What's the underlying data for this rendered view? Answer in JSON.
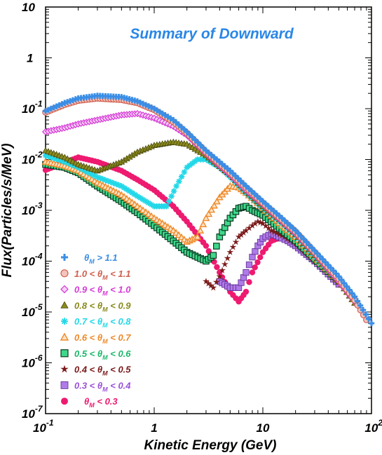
{
  "chart_data": {
    "type": "scatter",
    "title": "Summary of Downward",
    "xlabel": "Kinetic Energy (GeV)",
    "ylabel": "Flux(Particles/s/MeV)",
    "x_scale": "log",
    "y_scale": "log",
    "xlim": [
      0.1,
      100
    ],
    "ylim": [
      1e-07,
      10
    ],
    "grid": false,
    "legend_position": "bottom-left",
    "x_ticks": [
      {
        "value": 0.1,
        "base": "10",
        "exp": "-1"
      },
      {
        "value": 1,
        "base": "1",
        "exp": ""
      },
      {
        "value": 10,
        "base": "10",
        "exp": ""
      },
      {
        "value": 100,
        "base": "10",
        "exp": "2"
      }
    ],
    "y_ticks": [
      {
        "value": 10,
        "base": "10",
        "exp": ""
      },
      {
        "value": 1,
        "base": "1",
        "exp": ""
      },
      {
        "value": 0.1,
        "base": "10",
        "exp": "-1"
      },
      {
        "value": 0.01,
        "base": "10",
        "exp": "-2"
      },
      {
        "value": 0.001,
        "base": "10",
        "exp": "-3"
      },
      {
        "value": 0.0001,
        "base": "10",
        "exp": "-4"
      },
      {
        "value": 1e-05,
        "base": "10",
        "exp": "-5"
      },
      {
        "value": 1e-06,
        "base": "10",
        "exp": "-6"
      },
      {
        "value": 1e-07,
        "base": "10",
        "exp": "-7"
      }
    ],
    "series": [
      {
        "legend": {
          "pre": "",
          "sub": "M",
          "post": " > 1.1"
        },
        "marker": "plus",
        "color": "#3a8ee6",
        "points": [
          [
            0.1,
            0.09
          ],
          [
            0.15,
            0.13
          ],
          [
            0.2,
            0.16
          ],
          [
            0.3,
            0.18
          ],
          [
            0.5,
            0.17
          ],
          [
            0.7,
            0.14
          ],
          [
            1,
            0.1
          ],
          [
            1.5,
            0.06
          ],
          [
            2,
            0.035
          ],
          [
            3,
            0.015
          ],
          [
            5,
            0.006
          ],
          [
            7,
            0.003
          ],
          [
            10,
            0.0015
          ],
          [
            15,
            0.0007
          ],
          [
            20,
            0.0004
          ],
          [
            30,
            0.00016
          ],
          [
            50,
            5e-05
          ],
          [
            70,
            2e-05
          ],
          [
            100,
            6e-06
          ]
        ]
      },
      {
        "legend": {
          "pre": "1.0 < ",
          "sub": "M",
          "post": " < 1.1"
        },
        "marker": "circle-open",
        "color": "#d06050",
        "points": [
          [
            0.1,
            0.085
          ],
          [
            0.15,
            0.12
          ],
          [
            0.2,
            0.145
          ],
          [
            0.3,
            0.16
          ],
          [
            0.5,
            0.15
          ],
          [
            0.7,
            0.13
          ],
          [
            1,
            0.095
          ],
          [
            1.5,
            0.055
          ],
          [
            2,
            0.033
          ],
          [
            3,
            0.014
          ],
          [
            5,
            0.0055
          ],
          [
            7,
            0.0028
          ],
          [
            10,
            0.0014
          ],
          [
            15,
            0.00065
          ],
          [
            20,
            0.00038
          ],
          [
            30,
            0.00015
          ],
          [
            50,
            4.5e-05
          ],
          [
            70,
            1.7e-05
          ],
          [
            90,
            7e-06
          ]
        ]
      },
      {
        "legend": {
          "pre": "0.9 < ",
          "sub": "M",
          "post": " < 1.0"
        },
        "marker": "diamond",
        "color": "#d63ad6",
        "points": [
          [
            0.1,
            0.035
          ],
          [
            0.15,
            0.042
          ],
          [
            0.2,
            0.05
          ],
          [
            0.3,
            0.06
          ],
          [
            0.5,
            0.075
          ],
          [
            0.7,
            0.08
          ],
          [
            1,
            0.065
          ],
          [
            1.5,
            0.045
          ],
          [
            2,
            0.03
          ],
          [
            3,
            0.013
          ],
          [
            5,
            0.005
          ],
          [
            7,
            0.0025
          ],
          [
            10,
            0.0013
          ],
          [
            15,
            0.0006
          ],
          [
            20,
            0.00035
          ],
          [
            30,
            0.00014
          ],
          [
            50,
            4e-05
          ],
          [
            70,
            1.6e-05
          ]
        ]
      },
      {
        "legend": {
          "pre": "0.8 < ",
          "sub": "M",
          "post": " < 0.9"
        },
        "marker": "triangle",
        "color": "#8a8a1e",
        "points": [
          [
            0.1,
            0.015
          ],
          [
            0.15,
            0.011
          ],
          [
            0.2,
            0.008
          ],
          [
            0.3,
            0.006
          ],
          [
            0.5,
            0.009
          ],
          [
            0.7,
            0.014
          ],
          [
            1,
            0.019
          ],
          [
            1.5,
            0.022
          ],
          [
            2,
            0.02
          ],
          [
            3,
            0.012
          ],
          [
            5,
            0.005
          ],
          [
            7,
            0.0024
          ],
          [
            10,
            0.0012
          ],
          [
            15,
            0.0006
          ],
          [
            20,
            0.00034
          ],
          [
            30,
            0.00013
          ],
          [
            50,
            4e-05
          ],
          [
            70,
            1.5e-05
          ]
        ]
      },
      {
        "legend": {
          "pre": "0.7 < ",
          "sub": "M",
          "post": " < 0.8"
        },
        "marker": "asterisk",
        "color": "#22d8e8",
        "points": [
          [
            0.1,
            0.012
          ],
          [
            0.15,
            0.009
          ],
          [
            0.2,
            0.007
          ],
          [
            0.3,
            0.0045
          ],
          [
            0.5,
            0.003
          ],
          [
            0.7,
            0.0019
          ],
          [
            1,
            0.0012
          ],
          [
            1.3,
            0.0012
          ],
          [
            1.6,
            0.003
          ],
          [
            2,
            0.007
          ],
          [
            2.5,
            0.01
          ],
          [
            3,
            0.01
          ],
          [
            4,
            0.007
          ],
          [
            5,
            0.0045
          ],
          [
            7,
            0.0022
          ],
          [
            10,
            0.0011
          ],
          [
            15,
            0.00055
          ],
          [
            20,
            0.00032
          ],
          [
            30,
            0.00012
          ],
          [
            50,
            4e-05
          ]
        ]
      },
      {
        "legend": {
          "pre": "0.6 < ",
          "sub": "M",
          "post": " < 0.7"
        },
        "marker": "triangle-open",
        "color": "#ee8a2a",
        "points": [
          [
            0.1,
            0.009
          ],
          [
            0.15,
            0.0075
          ],
          [
            0.2,
            0.006
          ],
          [
            0.3,
            0.0035
          ],
          [
            0.5,
            0.002
          ],
          [
            0.7,
            0.0012
          ],
          [
            1,
            0.0007
          ],
          [
            1.5,
            0.0004
          ],
          [
            2,
            0.00024
          ],
          [
            2.5,
            0.0003
          ],
          [
            3,
            0.0007
          ],
          [
            4,
            0.0018
          ],
          [
            5,
            0.003
          ],
          [
            6,
            0.0028
          ],
          [
            7,
            0.0022
          ],
          [
            10,
            0.0011
          ],
          [
            15,
            0.0005
          ],
          [
            20,
            0.0003
          ],
          [
            30,
            0.00012
          ],
          [
            50,
            4e-05
          ]
        ]
      },
      {
        "legend": {
          "pre": "0.5 < ",
          "sub": "M",
          "post": " < 0.6"
        },
        "marker": "square-open",
        "color": "#1eb86a",
        "points": [
          [
            0.1,
            0.008
          ],
          [
            0.15,
            0.007
          ],
          [
            0.2,
            0.0055
          ],
          [
            0.3,
            0.003
          ],
          [
            0.5,
            0.0015
          ],
          [
            0.7,
            0.0009
          ],
          [
            1,
            0.0005
          ],
          [
            1.5,
            0.00025
          ],
          [
            2,
            0.00015
          ],
          [
            3,
            0.0001
          ],
          [
            3.5,
            0.00013
          ],
          [
            4,
            0.0003
          ],
          [
            5,
            0.0007
          ],
          [
            6,
            0.0011
          ],
          [
            7,
            0.0012
          ],
          [
            8,
            0.001
          ],
          [
            10,
            0.0008
          ],
          [
            15,
            0.0004
          ],
          [
            20,
            0.00025
          ],
          [
            30,
            0.00011
          ],
          [
            50,
            4e-05
          ]
        ]
      },
      {
        "legend": {
          "pre": "0.4 < ",
          "sub": "M",
          "post": " < 0.5"
        },
        "marker": "star",
        "color": "#7a1a1a",
        "points": [
          [
            3,
            4e-05
          ],
          [
            3.5,
            3e-05
          ],
          [
            4,
            5e-05
          ],
          [
            5,
            0.00015
          ],
          [
            6,
            0.0003
          ],
          [
            7,
            0.0004
          ],
          [
            8,
            0.0005
          ],
          [
            9,
            0.0006
          ],
          [
            10,
            0.00055
          ],
          [
            12,
            0.0004
          ],
          [
            15,
            0.00032
          ],
          [
            20,
            0.00022
          ],
          [
            30,
            0.0001
          ]
        ]
      },
      {
        "legend": {
          "pre": "0.3 < ",
          "sub": "M",
          "post": " < 0.4"
        },
        "marker": "square-filled",
        "color": "#9a52d8",
        "points": [
          [
            4,
            4e-05
          ],
          [
            5,
            3e-05
          ],
          [
            6,
            3e-05
          ],
          [
            7,
            6e-05
          ],
          [
            8,
            0.00012
          ],
          [
            9,
            0.0002
          ],
          [
            10,
            0.00028
          ],
          [
            12,
            0.00035
          ],
          [
            14,
            0.0003
          ],
          [
            17,
            0.00025
          ],
          [
            20,
            0.0002
          ],
          [
            30,
            0.0001
          ],
          [
            50,
            3.5e-05
          ]
        ]
      },
      {
        "legend": {
          "pre": "",
          "sub": "M",
          "post": " < 0.3"
        },
        "marker": "circle-filled",
        "color": "#ee1a70",
        "points": [
          [
            0.1,
            0.0062
          ],
          [
            0.2,
            0.011
          ],
          [
            0.3,
            0.009
          ],
          [
            0.5,
            0.006
          ],
          [
            0.7,
            0.004
          ],
          [
            1,
            0.0025
          ],
          [
            1.5,
            0.0012
          ],
          [
            2,
            0.0006
          ],
          [
            3,
            0.0002
          ],
          [
            4,
            6e-05
          ],
          [
            5,
            2.5e-05
          ],
          [
            6,
            1.6e-05
          ],
          [
            7,
            2.5e-05
          ],
          [
            8,
            6e-05
          ],
          [
            10,
            0.00015
          ],
          [
            12,
            0.00025
          ],
          [
            15,
            0.0003
          ],
          [
            20,
            0.00022
          ],
          [
            30,
            0.0001
          ]
        ]
      }
    ]
  }
}
